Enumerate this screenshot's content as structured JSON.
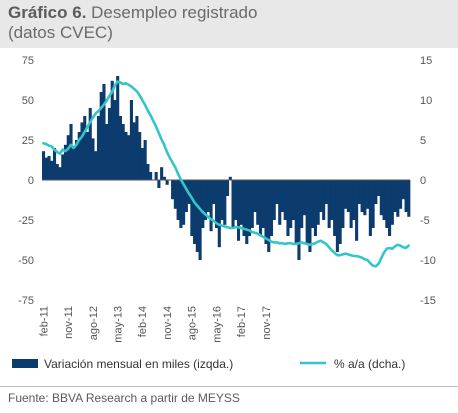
{
  "header": {
    "title_bold": "Gráfico 6.",
    "title_rest": " Desempleo registrado",
    "subtitle": "(datos CVEC)"
  },
  "footer": {
    "source": "Fuente: BBVA Research a partir de MEYSS"
  },
  "colors": {
    "bars": "#0c3b6e",
    "line": "#33c5cc",
    "title_bg": "#e8e8e8"
  },
  "chart_data": {
    "type": "bar",
    "title": "Desempleo registrado",
    "xlabel": "",
    "ylabel": "",
    "ylim": [
      -75,
      75
    ],
    "y2lim": [
      -15,
      15
    ],
    "yticks": [
      "75",
      "50",
      "25",
      "0",
      "-25",
      "-50",
      "-75"
    ],
    "y2ticks": [
      "15",
      "10",
      "5",
      "0",
      "-5",
      "-10",
      "-15"
    ],
    "xtick_labels": [
      "feb-11",
      "nov-11",
      "ago-12",
      "may-13",
      "feb-14",
      "nov-14",
      "ago-15",
      "may-16",
      "feb-17",
      "nov-17"
    ],
    "legend": {
      "placement": "bottom"
    },
    "series": [
      {
        "name": "Variación mensual en miles (izqda.)",
        "type": "bar",
        "axis": "left",
        "values": [
          18,
          14,
          15,
          12,
          20,
          10,
          8,
          16,
          22,
          28,
          35,
          20,
          25,
          30,
          36,
          40,
          30,
          45,
          26,
          18,
          40,
          55,
          60,
          35,
          45,
          62,
          50,
          65,
          40,
          35,
          30,
          28,
          50,
          36,
          40,
          30,
          20,
          25,
          10,
          5,
          0,
          5,
          -5,
          8,
          2,
          -3,
          0,
          -12,
          -18,
          -25,
          -30,
          -28,
          -20,
          -15,
          -35,
          -40,
          -45,
          -50,
          -30,
          -25,
          -20,
          -32,
          -15,
          -30,
          -42,
          -25,
          -28,
          -10,
          2,
          -30,
          -25,
          -38,
          -28,
          -35,
          -40,
          -35,
          -30,
          -20,
          -28,
          -35,
          -30,
          -40,
          -45,
          -35,
          -25,
          -15,
          -28,
          -20,
          -25,
          -35,
          -30,
          -25,
          -40,
          -50,
          -30,
          -22,
          -40,
          -45,
          -30,
          -35,
          -28,
          -20,
          -25,
          -15,
          -30,
          -25,
          -35,
          -45,
          -40,
          -30,
          -18,
          -20,
          -30,
          -25,
          -38,
          -15,
          -20,
          -22,
          -18,
          -35,
          -30,
          -15,
          -10,
          -22,
          -25,
          -30,
          -35,
          -28,
          -20,
          -23,
          -18,
          -12,
          -20,
          -23
        ]
      },
      {
        "name": "% a/a (dcha.)",
        "type": "line",
        "axis": "right",
        "values": [
          4.6,
          4.5,
          4.3,
          4.2,
          3.8,
          3.5,
          3.3,
          3.8,
          3.6,
          3.9,
          4.4,
          4.0,
          4.4,
          5.0,
          5.4,
          6.0,
          6.6,
          7.2,
          7.8,
          8.3,
          8.6,
          9.0,
          9.4,
          9.9,
          10.5,
          11.0,
          11.8,
          12.3,
          12.2,
          12.0,
          12.1,
          11.9,
          11.7,
          11.4,
          11.1,
          10.6,
          10.0,
          9.4,
          8.7,
          8.1,
          7.4,
          6.7,
          5.9,
          5.1,
          4.4,
          3.5,
          2.8,
          2.2,
          1.6,
          0.8,
          0.1,
          -0.5,
          -1.1,
          -1.7,
          -2.2,
          -2.8,
          -3.2,
          -3.6,
          -4.0,
          -4.3,
          -4.6,
          -4.9,
          -5.1,
          -5.4,
          -5.6,
          -5.7,
          -5.8,
          -5.9,
          -6.0,
          -6.0,
          -5.9,
          -5.9,
          -6.0,
          -6.1,
          -6.2,
          -6.3,
          -6.5,
          -6.6,
          -6.7,
          -6.9,
          -7.1,
          -7.3,
          -7.5,
          -7.7,
          -7.8,
          -7.8,
          -7.9,
          -7.9,
          -8.0,
          -7.9,
          -7.9,
          -8.0,
          -8.0,
          -7.9,
          -7.8,
          -7.9,
          -8.0,
          -8.1,
          -8.0,
          -7.9,
          -7.7,
          -7.6,
          -7.8,
          -8.0,
          -8.4,
          -8.8,
          -9.1,
          -9.4,
          -9.4,
          -9.3,
          -9.2,
          -9.3,
          -9.4,
          -9.5,
          -9.5,
          -9.6,
          -9.7,
          -9.9,
          -10.0,
          -10.4,
          -10.7,
          -10.8,
          -10.5,
          -9.8,
          -9.1,
          -8.6,
          -8.5,
          -8.6,
          -8.3,
          -8.1,
          -8.2,
          -8.4,
          -8.5,
          -8.2
        ]
      }
    ]
  }
}
